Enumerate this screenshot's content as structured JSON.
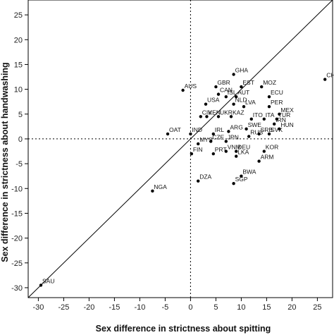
{
  "chart_data": {
    "type": "scatter",
    "xlabel": "Sex difference in strictness about spitting",
    "ylabel": "Sex difference in strictness about handwashing",
    "xlim": [
      -32,
      28
    ],
    "ylim": [
      -32,
      28
    ],
    "x_ticks": [
      -30,
      -25,
      -20,
      -15,
      -10,
      -5,
      0,
      5,
      10,
      15,
      20,
      25
    ],
    "y_ticks": [
      -30,
      -25,
      -20,
      -15,
      -10,
      -5,
      0,
      5,
      10,
      15,
      20,
      25
    ],
    "reference_lines": {
      "diagonal": "y = x",
      "x_zero": 0,
      "y_zero": 0
    },
    "grid": false,
    "points": [
      {
        "label": "SAU",
        "x": -29.5,
        "y": -29.5
      },
      {
        "label": "NGA",
        "x": -7.5,
        "y": -10.5
      },
      {
        "label": "OAT",
        "x": -4.5,
        "y": 1.0
      },
      {
        "label": "AUS",
        "x": -1.5,
        "y": 9.8
      },
      {
        "label": "IND",
        "x": 0.0,
        "y": 1.0
      },
      {
        "label": "FIN",
        "x": 0.2,
        "y": -3.0
      },
      {
        "label": "MYS",
        "x": 1.5,
        "y": -1.0
      },
      {
        "label": "CIV",
        "x": 2.0,
        "y": 4.5
      },
      {
        "label": "DZA",
        "x": 1.5,
        "y": -8.5
      },
      {
        "label": "USA",
        "x": 3.0,
        "y": 7.0
      },
      {
        "label": "KEN",
        "x": 3.2,
        "y": 4.5
      },
      {
        "label": "GBR",
        "x": 5.0,
        "y": 10.5
      },
      {
        "label": "CAN",
        "x": 5.5,
        "y": 9.0
      },
      {
        "label": "PRT",
        "x": 4.5,
        "y": -3.0
      },
      {
        "label": "CZE",
        "x": 4.0,
        "y": -0.5
      },
      {
        "label": "IRL",
        "x": 4.5,
        "y": 1.0
      },
      {
        "label": "UKR",
        "x": 5.5,
        "y": 4.5
      },
      {
        "label": "GHA",
        "x": 8.5,
        "y": 13.0
      },
      {
        "label": "ISL",
        "x": 7.0,
        "y": 8.5
      },
      {
        "label": "NLD",
        "x": 8.5,
        "y": 7.0
      },
      {
        "label": "KAZ",
        "x": 8.0,
        "y": 4.5
      },
      {
        "label": "ARG",
        "x": 7.5,
        "y": 1.5
      },
      {
        "label": "JPN",
        "x": 7.0,
        "y": -0.5
      },
      {
        "label": "VNM",
        "x": 7.0,
        "y": -2.5
      },
      {
        "label": "AUT",
        "x": 9.0,
        "y": 8.5
      },
      {
        "label": "DEU",
        "x": 9.0,
        "y": -2.5
      },
      {
        "label": "EST",
        "x": 10.0,
        "y": 10.5
      },
      {
        "label": "LVA",
        "x": 10.5,
        "y": 6.5
      },
      {
        "label": "LKA",
        "x": 9.0,
        "y": -3.5
      },
      {
        "label": "SWE",
        "x": 11.0,
        "y": 2.0
      },
      {
        "label": "ITO",
        "x": 12.0,
        "y": 4.0
      },
      {
        "label": "RUS",
        "x": 11.5,
        "y": 0.5
      },
      {
        "label": "SRB",
        "x": 13.5,
        "y": 1.0
      },
      {
        "label": "SVK",
        "x": 15.5,
        "y": 1.0
      },
      {
        "label": "BWA",
        "x": 10.0,
        "y": -7.5
      },
      {
        "label": "SGP",
        "x": 8.5,
        "y": -9.0
      },
      {
        "label": "KOR",
        "x": 14.5,
        "y": -2.5
      },
      {
        "label": "ARM",
        "x": 13.5,
        "y": -4.5
      },
      {
        "label": "MOZ",
        "x": 14.0,
        "y": 10.5
      },
      {
        "label": "ECU",
        "x": 15.5,
        "y": 8.5
      },
      {
        "label": "PER",
        "x": 15.5,
        "y": 6.5
      },
      {
        "label": "MEX",
        "x": 17.5,
        "y": 5.0
      },
      {
        "label": "ITA",
        "x": 14.5,
        "y": 4.0
      },
      {
        "label": "TUR",
        "x": 17.0,
        "y": 4.0
      },
      {
        "label": "IRN",
        "x": 16.5,
        "y": 3.0
      },
      {
        "label": "HUN",
        "x": 17.5,
        "y": 2.0
      },
      {
        "label": "CHL",
        "x": 26.5,
        "y": 12.0
      }
    ]
  }
}
